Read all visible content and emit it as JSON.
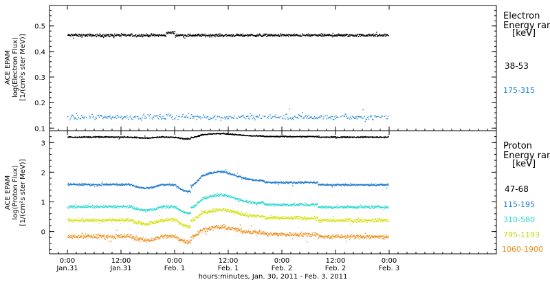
{
  "chart_data": {
    "type": "scatter",
    "xlabel": "hours:minutes, Jan. 30, 2011 - Feb. 3, 2011",
    "x_range_hours": [
      -4,
      96
    ],
    "x_ticks": [
      {
        "h": 0,
        "time": "0:00",
        "date": "Jan.31"
      },
      {
        "h": 12,
        "time": "12:00",
        "date": "Jan.31"
      },
      {
        "h": 24,
        "time": "0:00",
        "date": "Feb. 1"
      },
      {
        "h": 36,
        "time": "12:00",
        "date": "Feb. 1"
      },
      {
        "h": 48,
        "time": "0:00",
        "date": "Feb. 2"
      },
      {
        "h": 60,
        "time": "12:00",
        "date": "Feb. 2"
      },
      {
        "h": 72,
        "time": "0:00",
        "date": "Feb. 3"
      }
    ],
    "panels": [
      {
        "id": "electron",
        "ylabel_lines": [
          "ACE EPAM",
          "log(Electron Flux)",
          "[1/(cm²s ster MeV)]"
        ],
        "ylim": [
          0.09,
          0.58
        ],
        "yticks": [
          0.1,
          0.2,
          0.3,
          0.4,
          0.5
        ],
        "ytick_labels": [
          "0.1",
          "0.2",
          "0.3",
          "0.4",
          "0.5"
        ],
        "legend_title": [
          "Electron",
          "Energy ran"
        ],
        "legend_unit": "[keV]",
        "series": [
          {
            "name": "38-53",
            "color": "#000000",
            "base": 0.465,
            "noise": 0.008
          },
          {
            "name": "175-315",
            "color": "#1a86d8",
            "base": 0.145,
            "noise": 0.015
          }
        ]
      },
      {
        "id": "proton",
        "ylabel_lines": [
          "ACE EPAM",
          "log(Proton Flux)",
          "[1/(cm²s ster MeV)]"
        ],
        "ylim": [
          -0.75,
          3.4
        ],
        "yticks": [
          0,
          1,
          2,
          3
        ],
        "ytick_labels": [
          "0",
          "1",
          "2",
          "3"
        ],
        "legend_title": [
          "Proton",
          "Energy ran"
        ],
        "legend_unit": "[keV]",
        "series": [
          {
            "name": "47-68",
            "color": "#000000",
            "base": 3.2,
            "noise": 0.03
          },
          {
            "name": "115-195",
            "color": "#1a78d0",
            "base": 1.6,
            "noise": 0.05
          },
          {
            "name": "310-580",
            "color": "#22d8d0",
            "base": 0.85,
            "noise": 0.07
          },
          {
            "name": "795-1193",
            "color": "#d2e000",
            "base": 0.4,
            "noise": 0.09
          },
          {
            "name": "1060-1900",
            "color": "#ee8a14",
            "base": -0.15,
            "noise": 0.11
          }
        ]
      }
    ]
  }
}
